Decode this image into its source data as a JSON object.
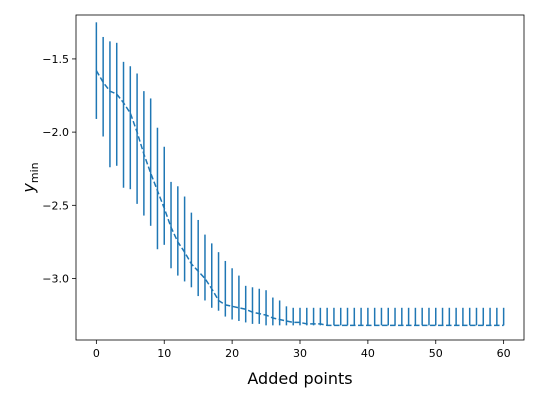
{
  "chart_data": {
    "type": "line",
    "title": "",
    "xlabel": "Added points",
    "ylabel": "y",
    "ylabel_subscript": "min",
    "xlim": [
      -3,
      63
    ],
    "ylim": [
      -3.42,
      -1.2
    ],
    "xticks": [
      0,
      10,
      20,
      30,
      40,
      50,
      60
    ],
    "yticks": [
      -3.0,
      -2.5,
      -2.0,
      -1.5
    ],
    "ytick_labels": [
      "−3.0",
      "−2.5",
      "−2.0",
      "−1.5"
    ],
    "grid": false,
    "color": "#1f77b4",
    "series": [
      {
        "style": "dashed",
        "errorbars": true,
        "x": [
          0,
          1,
          2,
          3,
          4,
          5,
          6,
          7,
          8,
          9,
          10,
          11,
          12,
          13,
          14,
          15,
          16,
          17,
          18,
          19,
          20,
          21,
          22,
          23,
          24,
          25,
          26,
          27,
          28,
          29,
          30,
          31,
          32,
          33,
          34,
          35,
          36,
          37,
          38,
          39,
          40,
          41,
          42,
          43,
          44,
          45,
          46,
          47,
          48,
          49,
          50,
          51,
          52,
          53,
          54,
          55,
          56,
          57,
          58,
          59,
          60
        ],
        "y": [
          -1.58,
          -1.66,
          -1.72,
          -1.74,
          -1.8,
          -1.87,
          -2.0,
          -2.15,
          -2.28,
          -2.4,
          -2.52,
          -2.65,
          -2.75,
          -2.82,
          -2.9,
          -2.95,
          -3.0,
          -3.07,
          -3.15,
          -3.18,
          -3.19,
          -3.2,
          -3.21,
          -3.23,
          -3.24,
          -3.25,
          -3.27,
          -3.28,
          -3.29,
          -3.3,
          -3.3,
          -3.31,
          -3.31,
          -3.31,
          -3.32,
          -3.32,
          -3.32,
          -3.32,
          -3.32,
          -3.32,
          -3.32,
          -3.32,
          -3.32,
          -3.32,
          -3.32,
          -3.32,
          -3.32,
          -3.32,
          -3.32,
          -3.32,
          -3.32,
          -3.32,
          -3.32,
          -3.32,
          -3.32,
          -3.32,
          -3.32,
          -3.32,
          -3.32,
          -3.32,
          -3.32
        ],
        "y_lower": [
          -1.91,
          -2.03,
          -2.24,
          -2.23,
          -2.38,
          -2.39,
          -2.49,
          -2.57,
          -2.64,
          -2.8,
          -2.77,
          -2.93,
          -2.98,
          -3.02,
          -3.06,
          -3.12,
          -3.15,
          -3.2,
          -3.22,
          -3.26,
          -3.28,
          -3.29,
          -3.3,
          -3.31,
          -3.31,
          -3.32,
          -3.32,
          -3.32,
          -3.32,
          -3.32,
          -3.32,
          -3.32,
          -3.32,
          -3.32,
          -3.32,
          -3.32,
          -3.32,
          -3.32,
          -3.32,
          -3.32,
          -3.32,
          -3.32,
          -3.32,
          -3.32,
          -3.32,
          -3.32,
          -3.32,
          -3.32,
          -3.32,
          -3.32,
          -3.32,
          -3.32,
          -3.32,
          -3.32,
          -3.32,
          -3.32,
          -3.32,
          -3.32,
          -3.32,
          -3.32,
          -3.32
        ],
        "y_upper": [
          -1.25,
          -1.35,
          -1.38,
          -1.39,
          -1.52,
          -1.55,
          -1.6,
          -1.72,
          -1.77,
          -1.97,
          -2.1,
          -2.34,
          -2.37,
          -2.44,
          -2.55,
          -2.6,
          -2.7,
          -2.76,
          -2.82,
          -2.88,
          -2.93,
          -2.98,
          -3.05,
          -3.06,
          -3.07,
          -3.08,
          -3.13,
          -3.15,
          -3.19,
          -3.2,
          -3.2,
          -3.2,
          -3.2,
          -3.2,
          -3.2,
          -3.2,
          -3.2,
          -3.2,
          -3.2,
          -3.2,
          -3.2,
          -3.2,
          -3.2,
          -3.2,
          -3.2,
          -3.2,
          -3.2,
          -3.2,
          -3.2,
          -3.2,
          -3.2,
          -3.2,
          -3.2,
          -3.2,
          -3.2,
          -3.2,
          -3.2,
          -3.2,
          -3.2,
          -3.2,
          -3.2
        ]
      }
    ]
  }
}
